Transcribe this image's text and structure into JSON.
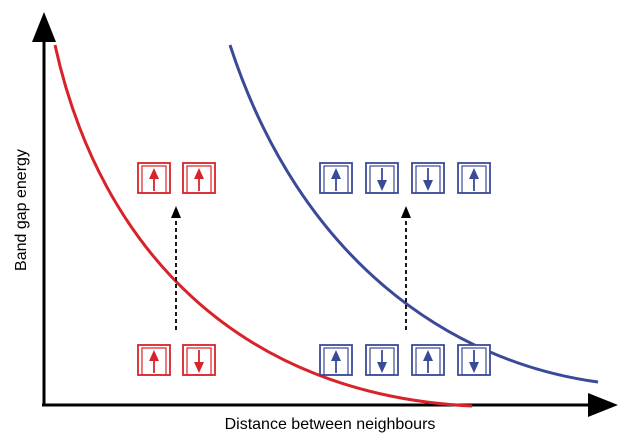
{
  "axes": {
    "x_label": "Distance between neighbours",
    "y_label": "Band gap energy"
  }
}
